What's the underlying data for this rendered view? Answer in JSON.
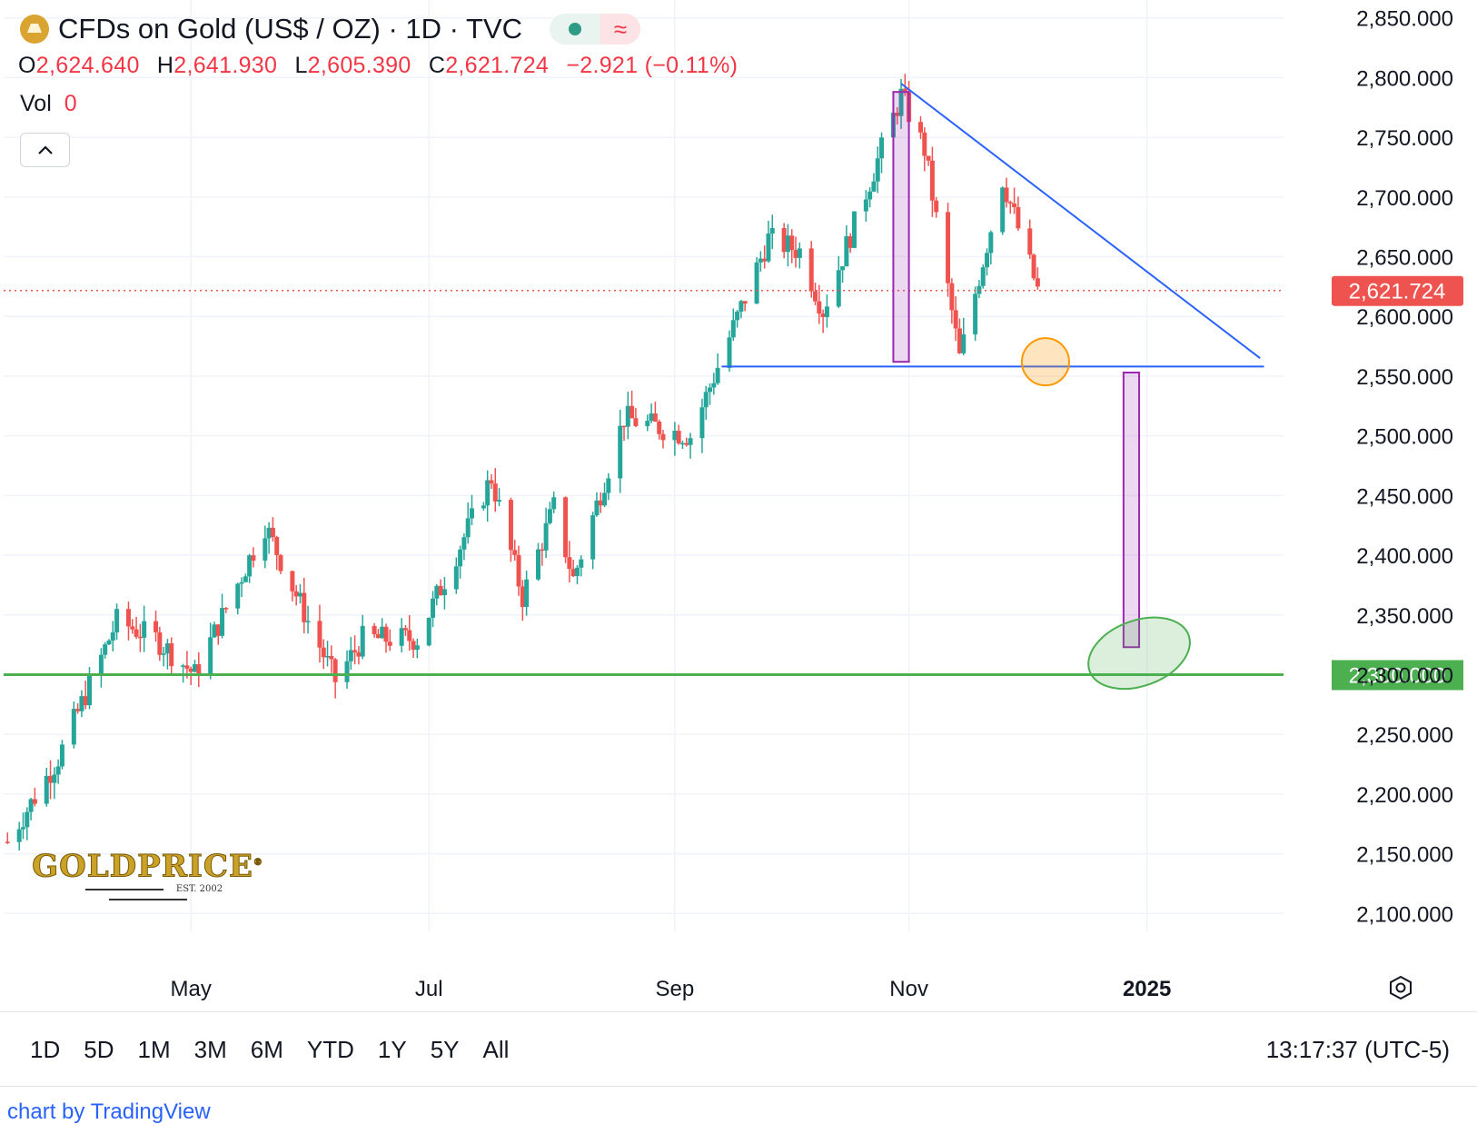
{
  "header": {
    "title": "CFDs on Gold (US$ / OZ) · 1D · TVC",
    "status_wave": "≈"
  },
  "ohlc": {
    "o_label": "O",
    "o_value": "2,624.640",
    "h_label": "H",
    "h_value": "2,641.930",
    "l_label": "L",
    "l_value": "2,605.390",
    "c_label": "C",
    "c_value": "2,621.724",
    "change": "−2.921 (−0.11%)"
  },
  "volume": {
    "label": "Vol",
    "value": "0"
  },
  "watermark": {
    "text": "GOLDPRICE",
    "mark": "®",
    "sub": "EST. 2002"
  },
  "ranges": [
    "1D",
    "5D",
    "1M",
    "3M",
    "6M",
    "YTD",
    "1Y",
    "5Y",
    "All"
  ],
  "clock": "13:17:37 (UTC-5)",
  "credit": "chart by TradingView",
  "colors": {
    "up": "#26a69a",
    "down": "#ef5350",
    "trendline": "#2962ff",
    "support": "#4caf50",
    "price_tag": "#ef5350",
    "pattern_box": "#9c27b0"
  },
  "chart_data": {
    "type": "candlestick",
    "y_ticks": [
      "2,850.000",
      "2,800.000",
      "2,750.000",
      "2,700.000",
      "2,650.000",
      "2,600.000",
      "2,550.000",
      "2,500.000",
      "2,450.000",
      "2,400.000",
      "2,350.000",
      "2,300.000",
      "2,250.000",
      "2,200.000",
      "2,150.000",
      "2,100.000"
    ],
    "y_tick_values": [
      2850,
      2800,
      2750,
      2700,
      2650,
      2600,
      2550,
      2500,
      2450,
      2400,
      2350,
      2300,
      2250,
      2200,
      2150,
      2100
    ],
    "ylim": [
      2085,
      2865
    ],
    "x_tick_labels": [
      {
        "label": "May",
        "date": "2024-05-01"
      },
      {
        "label": "Jul",
        "date": "2024-07-01"
      },
      {
        "label": "Sep",
        "date": "2024-09-02"
      },
      {
        "label": "Nov",
        "date": "2024-11-01"
      },
      {
        "label": "2025",
        "date": "2025-01-01"
      }
    ],
    "xlim": [
      "2024-03-14",
      "2025-02-05"
    ],
    "last_price": {
      "value": 2621.724,
      "label": "2,621.724"
    },
    "support_level": {
      "value": 2300,
      "label": "2,300.000"
    },
    "close_series": {
      "dates": [
        "2024-03-15",
        "2024-03-28",
        "2024-04-12",
        "2024-04-22",
        "2024-05-02",
        "2024-05-20",
        "2024-05-31",
        "2024-06-07",
        "2024-06-14",
        "2024-06-28",
        "2024-07-17",
        "2024-07-25",
        "2024-08-02",
        "2024-08-07",
        "2024-08-20",
        "2024-09-06",
        "2024-09-26",
        "2024-10-04",
        "2024-10-10",
        "2024-10-30",
        "2024-11-05",
        "2024-11-14",
        "2024-11-25",
        "2024-12-04"
      ],
      "values": [
        2160,
        2230,
        2345,
        2330,
        2300,
        2425,
        2345,
        2295,
        2330,
        2330,
        2465,
        2365,
        2440,
        2380,
        2515,
        2500,
        2665,
        2655,
        2605,
        2785,
        2740,
        2565,
        2715,
        2622
      ]
    },
    "trendlines": [
      {
        "name": "descending resistance",
        "from": {
          "date": "2024-10-30",
          "value": 2795
        },
        "to": {
          "date": "2025-01-30",
          "value": 2565
        }
      },
      {
        "name": "horizontal support",
        "from": {
          "date": "2024-09-14",
          "value": 2558
        },
        "to": {
          "date": "2025-01-31",
          "value": 2558
        }
      }
    ],
    "annotations": [
      {
        "type": "box",
        "from": {
          "date": "2024-10-28",
          "value": 2788
        },
        "to": {
          "date": "2024-11-01",
          "value": 2562
        }
      },
      {
        "type": "box",
        "from": {
          "date": "2024-12-26",
          "value": 2553
        },
        "to": {
          "date": "2024-12-30",
          "value": 2323
        }
      },
      {
        "type": "circle",
        "center": {
          "date": "2024-12-06",
          "value": 2562
        }
      },
      {
        "type": "ellipse",
        "center": {
          "date": "2024-12-30",
          "value": 2318
        }
      }
    ],
    "grid": true
  }
}
